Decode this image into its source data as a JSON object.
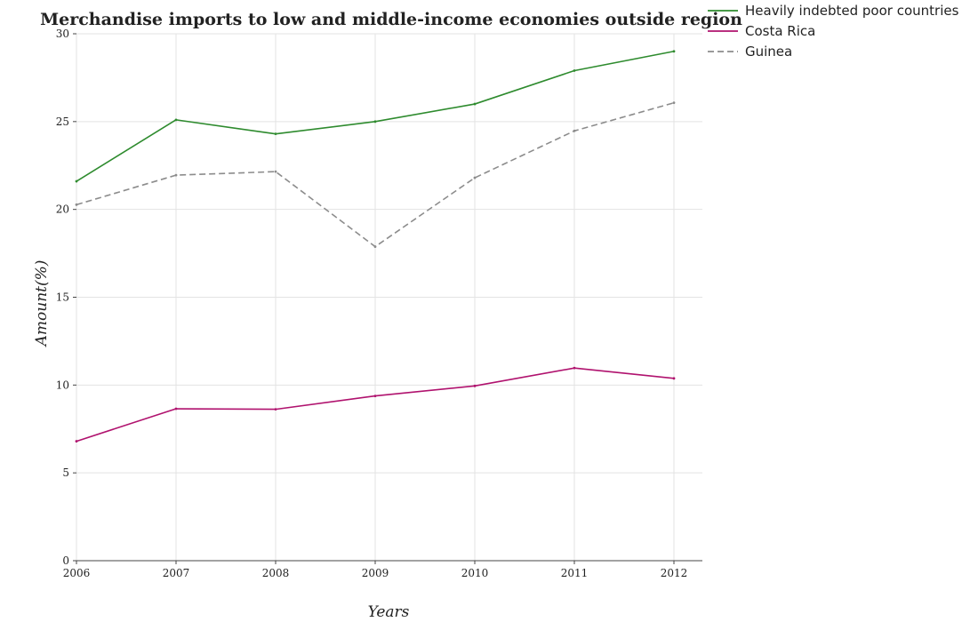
{
  "chart_data": {
    "type": "line",
    "title": "Merchandise imports to low and middle-income economies outside region",
    "xlabel": "Years",
    "ylabel": "Amount(%)",
    "x": [
      "2006",
      "2007",
      "2008",
      "2009",
      "2010",
      "2011",
      "2012"
    ],
    "ylim": [
      0,
      30
    ],
    "yticks": [
      0,
      5,
      10,
      15,
      20,
      25,
      30
    ],
    "grid": true,
    "legend_position": "top-right",
    "series": [
      {
        "name": "Heavily indebted poor countries",
        "color": "#2e8b2e",
        "dash": "solid",
        "values": [
          21.6,
          25.1,
          24.3,
          25.0,
          26.0,
          27.9,
          29.0
        ]
      },
      {
        "name": "Costa Rica",
        "color": "#b0126e",
        "dash": "solid",
        "values": [
          6.8,
          8.65,
          8.62,
          9.38,
          9.95,
          10.97,
          10.38
        ]
      },
      {
        "name": "Guinea",
        "color": "#8c8c8c",
        "dash": "dashed",
        "values": [
          20.27,
          21.95,
          22.15,
          17.88,
          21.8,
          24.47,
          26.07
        ]
      }
    ]
  }
}
